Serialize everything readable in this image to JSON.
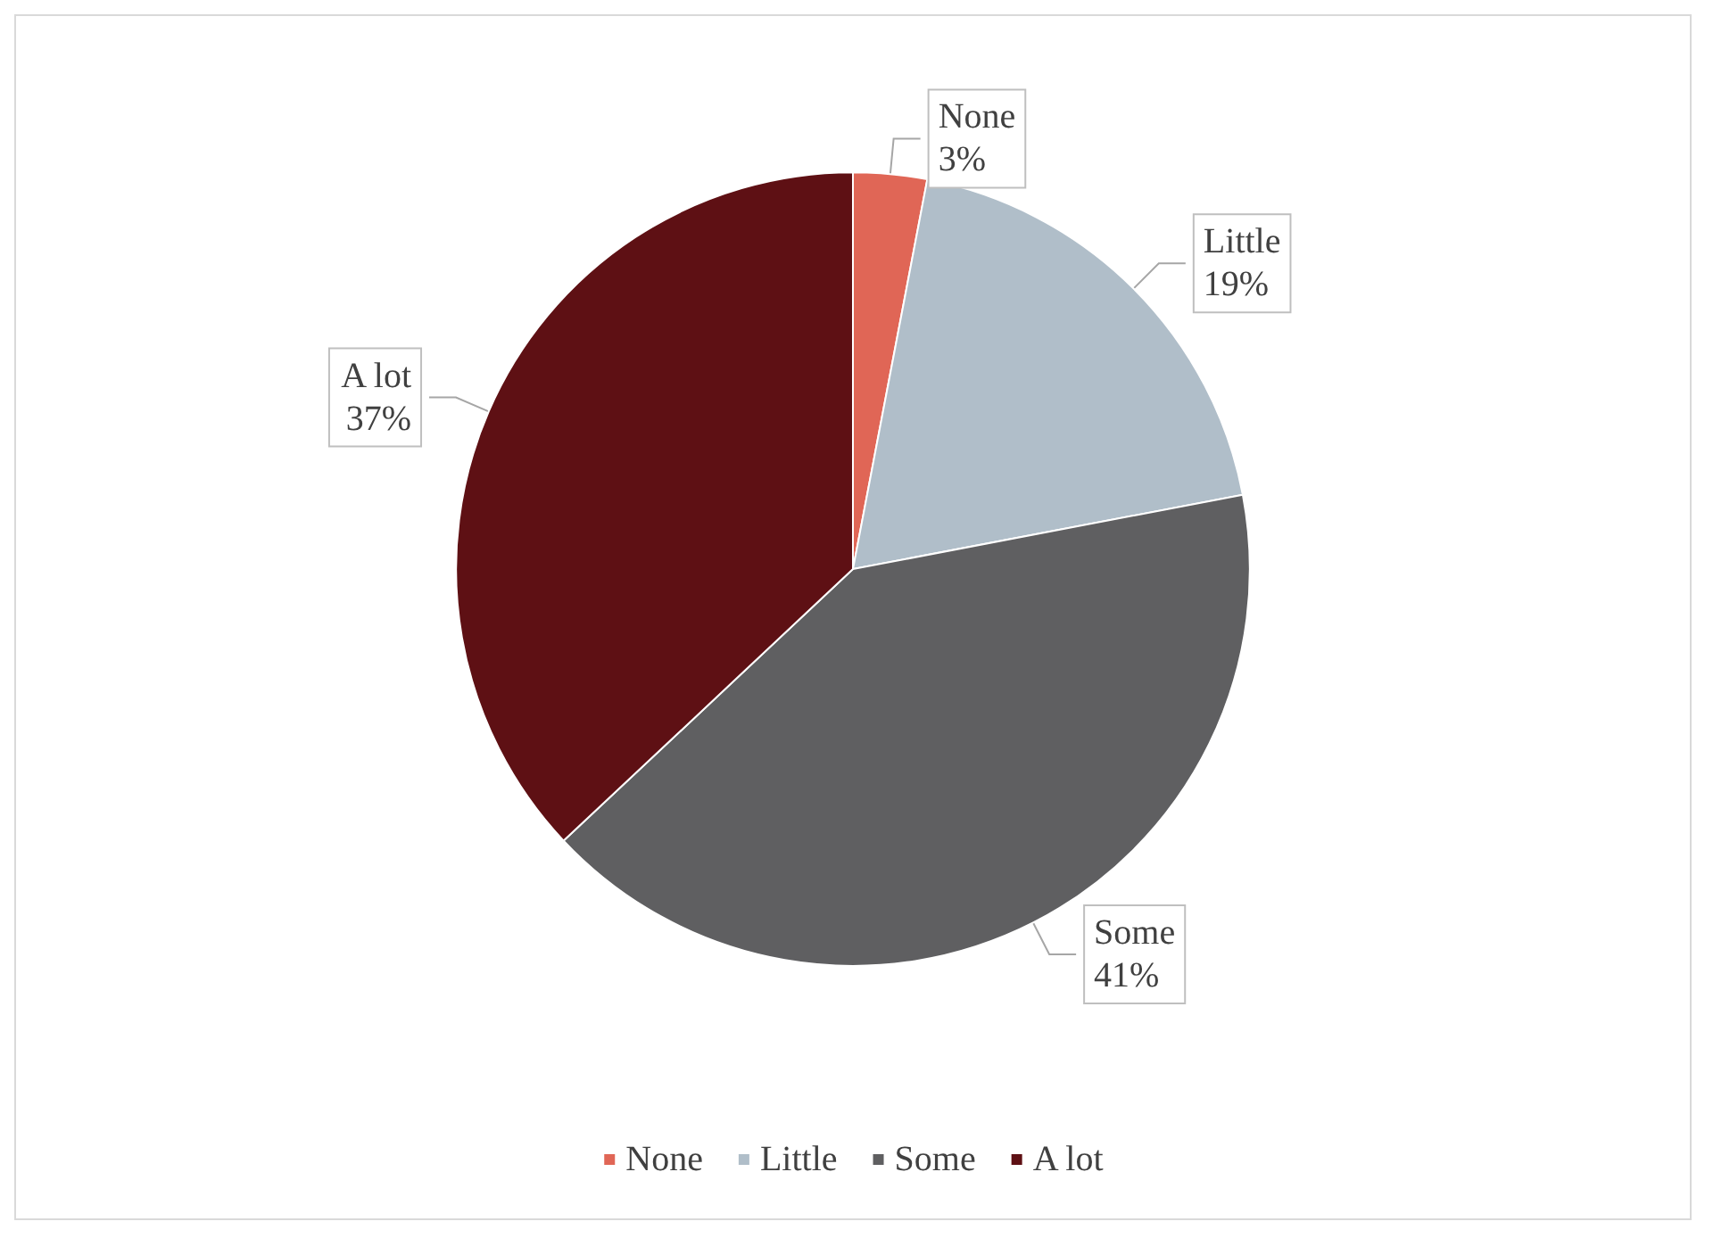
{
  "chart_data": {
    "type": "pie",
    "categories": [
      "None",
      "Little",
      "Some",
      "A lot"
    ],
    "values": [
      3,
      19,
      41,
      37
    ],
    "value_labels": [
      "3%",
      "19%",
      "41%",
      "37%"
    ],
    "colors": [
      "#e06656",
      "#b0bec9",
      "#5f5f61",
      "#5e1014"
    ],
    "legend": "bottom"
  }
}
